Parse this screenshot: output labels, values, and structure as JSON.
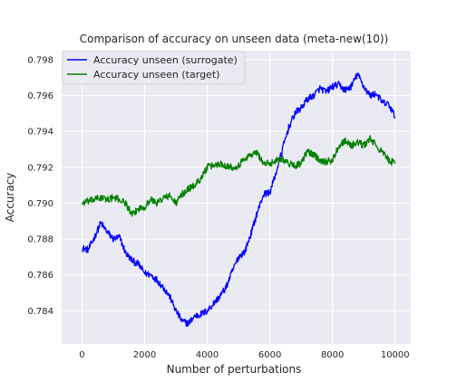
{
  "chart_data": {
    "type": "line",
    "title": "Comparison of accuracy on unseen data (meta-new(10))",
    "xlabel": "Number of perturbations",
    "ylabel": "Accuracy",
    "xlim": [
      -650,
      10500
    ],
    "ylim": [
      0.78215,
      0.7985
    ],
    "xticks": [
      0,
      2000,
      4000,
      6000,
      8000,
      10000
    ],
    "xtick_labels": [
      "0",
      "2000",
      "4000",
      "6000",
      "8000",
      "10000"
    ],
    "yticks": [
      0.784,
      0.786,
      0.788,
      0.79,
      0.792,
      0.794,
      0.796,
      0.798
    ],
    "ytick_labels": [
      "0.784",
      "0.786",
      "0.788",
      "0.790",
      "0.792",
      "0.794",
      "0.796",
      "0.798"
    ],
    "grid": true,
    "legend_position": "top-left",
    "background_color": "#eaeaf2",
    "series": [
      {
        "name": "Accuracy unseen (surrogate)",
        "color": "#0000ff",
        "x": [
          0,
          200,
          400,
          600,
          800,
          1000,
          1200,
          1400,
          1600,
          1800,
          2000,
          2200,
          2400,
          2600,
          2800,
          3000,
          3200,
          3400,
          3600,
          3800,
          4000,
          4200,
          4400,
          4600,
          4800,
          5000,
          5200,
          5400,
          5600,
          5800,
          6000,
          6200,
          6400,
          6600,
          6800,
          7000,
          7200,
          7400,
          7600,
          7800,
          8000,
          8200,
          8400,
          8600,
          8800,
          9000,
          9200,
          9400,
          9600,
          9800,
          10000
        ],
        "y": [
          0.7875,
          0.7874,
          0.7881,
          0.7889,
          0.7884,
          0.788,
          0.7881,
          0.7872,
          0.7868,
          0.7866,
          0.7861,
          0.786,
          0.7857,
          0.7853,
          0.7848,
          0.784,
          0.7834,
          0.7833,
          0.7837,
          0.7838,
          0.784,
          0.7844,
          0.7848,
          0.7853,
          0.7862,
          0.787,
          0.7873,
          0.7883,
          0.7895,
          0.7905,
          0.7906,
          0.7917,
          0.793,
          0.7942,
          0.795,
          0.7953,
          0.7958,
          0.796,
          0.7964,
          0.7962,
          0.7965,
          0.7966,
          0.7963,
          0.7965,
          0.7972,
          0.7965,
          0.796,
          0.7961,
          0.7956,
          0.7955,
          0.7948
        ]
      },
      {
        "name": "Accuracy unseen (target)",
        "color": "#008000",
        "x": [
          0,
          200,
          400,
          600,
          800,
          1000,
          1200,
          1400,
          1600,
          1800,
          2000,
          2200,
          2400,
          2600,
          2800,
          3000,
          3200,
          3400,
          3600,
          3800,
          4000,
          4200,
          4400,
          4600,
          4800,
          5000,
          5200,
          5400,
          5600,
          5800,
          6000,
          6200,
          6400,
          6600,
          6800,
          7000,
          7200,
          7400,
          7600,
          7800,
          8000,
          8200,
          8400,
          8600,
          8800,
          9000,
          9200,
          9400,
          9600,
          9800,
          10000
        ],
        "y": [
          0.79,
          0.7901,
          0.7902,
          0.7903,
          0.7902,
          0.7903,
          0.7902,
          0.79,
          0.7893,
          0.7897,
          0.7898,
          0.7902,
          0.79,
          0.7903,
          0.7904,
          0.79,
          0.7905,
          0.7908,
          0.791,
          0.7914,
          0.792,
          0.7921,
          0.7922,
          0.7921,
          0.792,
          0.7921,
          0.7925,
          0.7927,
          0.7928,
          0.7922,
          0.7922,
          0.7924,
          0.7925,
          0.7922,
          0.7921,
          0.7922,
          0.7929,
          0.7927,
          0.7924,
          0.7923,
          0.7924,
          0.7932,
          0.7935,
          0.7932,
          0.7934,
          0.7932,
          0.7936,
          0.7932,
          0.7928,
          0.7924,
          0.7922
        ]
      }
    ]
  }
}
